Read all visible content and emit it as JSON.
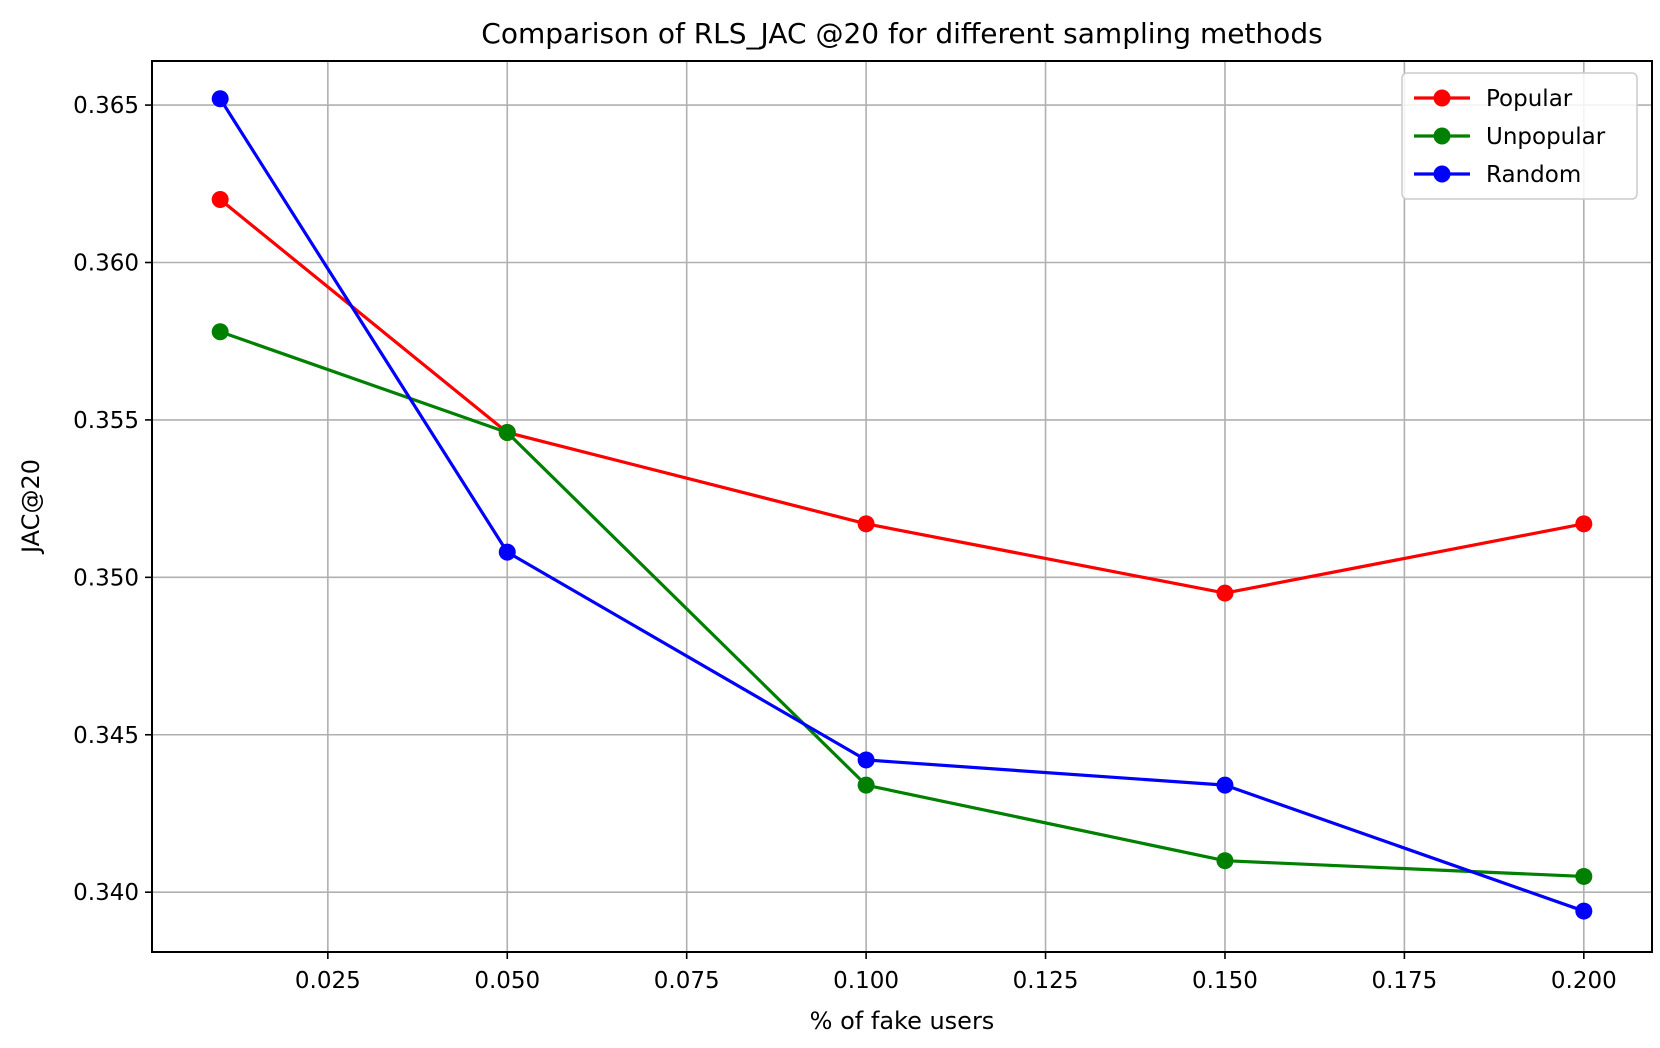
{
  "chart_data": {
    "type": "line",
    "title": "Comparison of RLS_JAC @20 for different sampling methods",
    "xlabel": "% of fake users",
    "ylabel": "JAC@20",
    "xlim": [
      0.0005,
      0.2095
    ],
    "ylim": [
      0.3381,
      0.3664
    ],
    "x_ticks": [
      0.025,
      0.05,
      0.075,
      0.1,
      0.125,
      0.15,
      0.175,
      0.2
    ],
    "x_tick_labels": [
      "0.025",
      "0.050",
      "0.075",
      "0.100",
      "0.125",
      "0.150",
      "0.175",
      "0.200"
    ],
    "y_ticks": [
      0.34,
      0.345,
      0.35,
      0.355,
      0.36,
      0.365
    ],
    "y_tick_labels": [
      "0.340",
      "0.345",
      "0.350",
      "0.355",
      "0.360",
      "0.365"
    ],
    "grid": true,
    "legend_position": "top-right",
    "x": [
      0.01,
      0.05,
      0.1,
      0.15,
      0.2
    ],
    "series": [
      {
        "name": "Popular",
        "color": "#ff0000",
        "values": [
          0.362,
          0.3546,
          0.3517,
          0.3495,
          0.3517
        ]
      },
      {
        "name": "Unpopular",
        "color": "#008000",
        "values": [
          0.3578,
          0.3546,
          0.3434,
          0.341,
          0.3405
        ]
      },
      {
        "name": "Random",
        "color": "#0000ff",
        "values": [
          0.3652,
          0.3508,
          0.3442,
          0.3434,
          0.3394
        ]
      }
    ]
  }
}
